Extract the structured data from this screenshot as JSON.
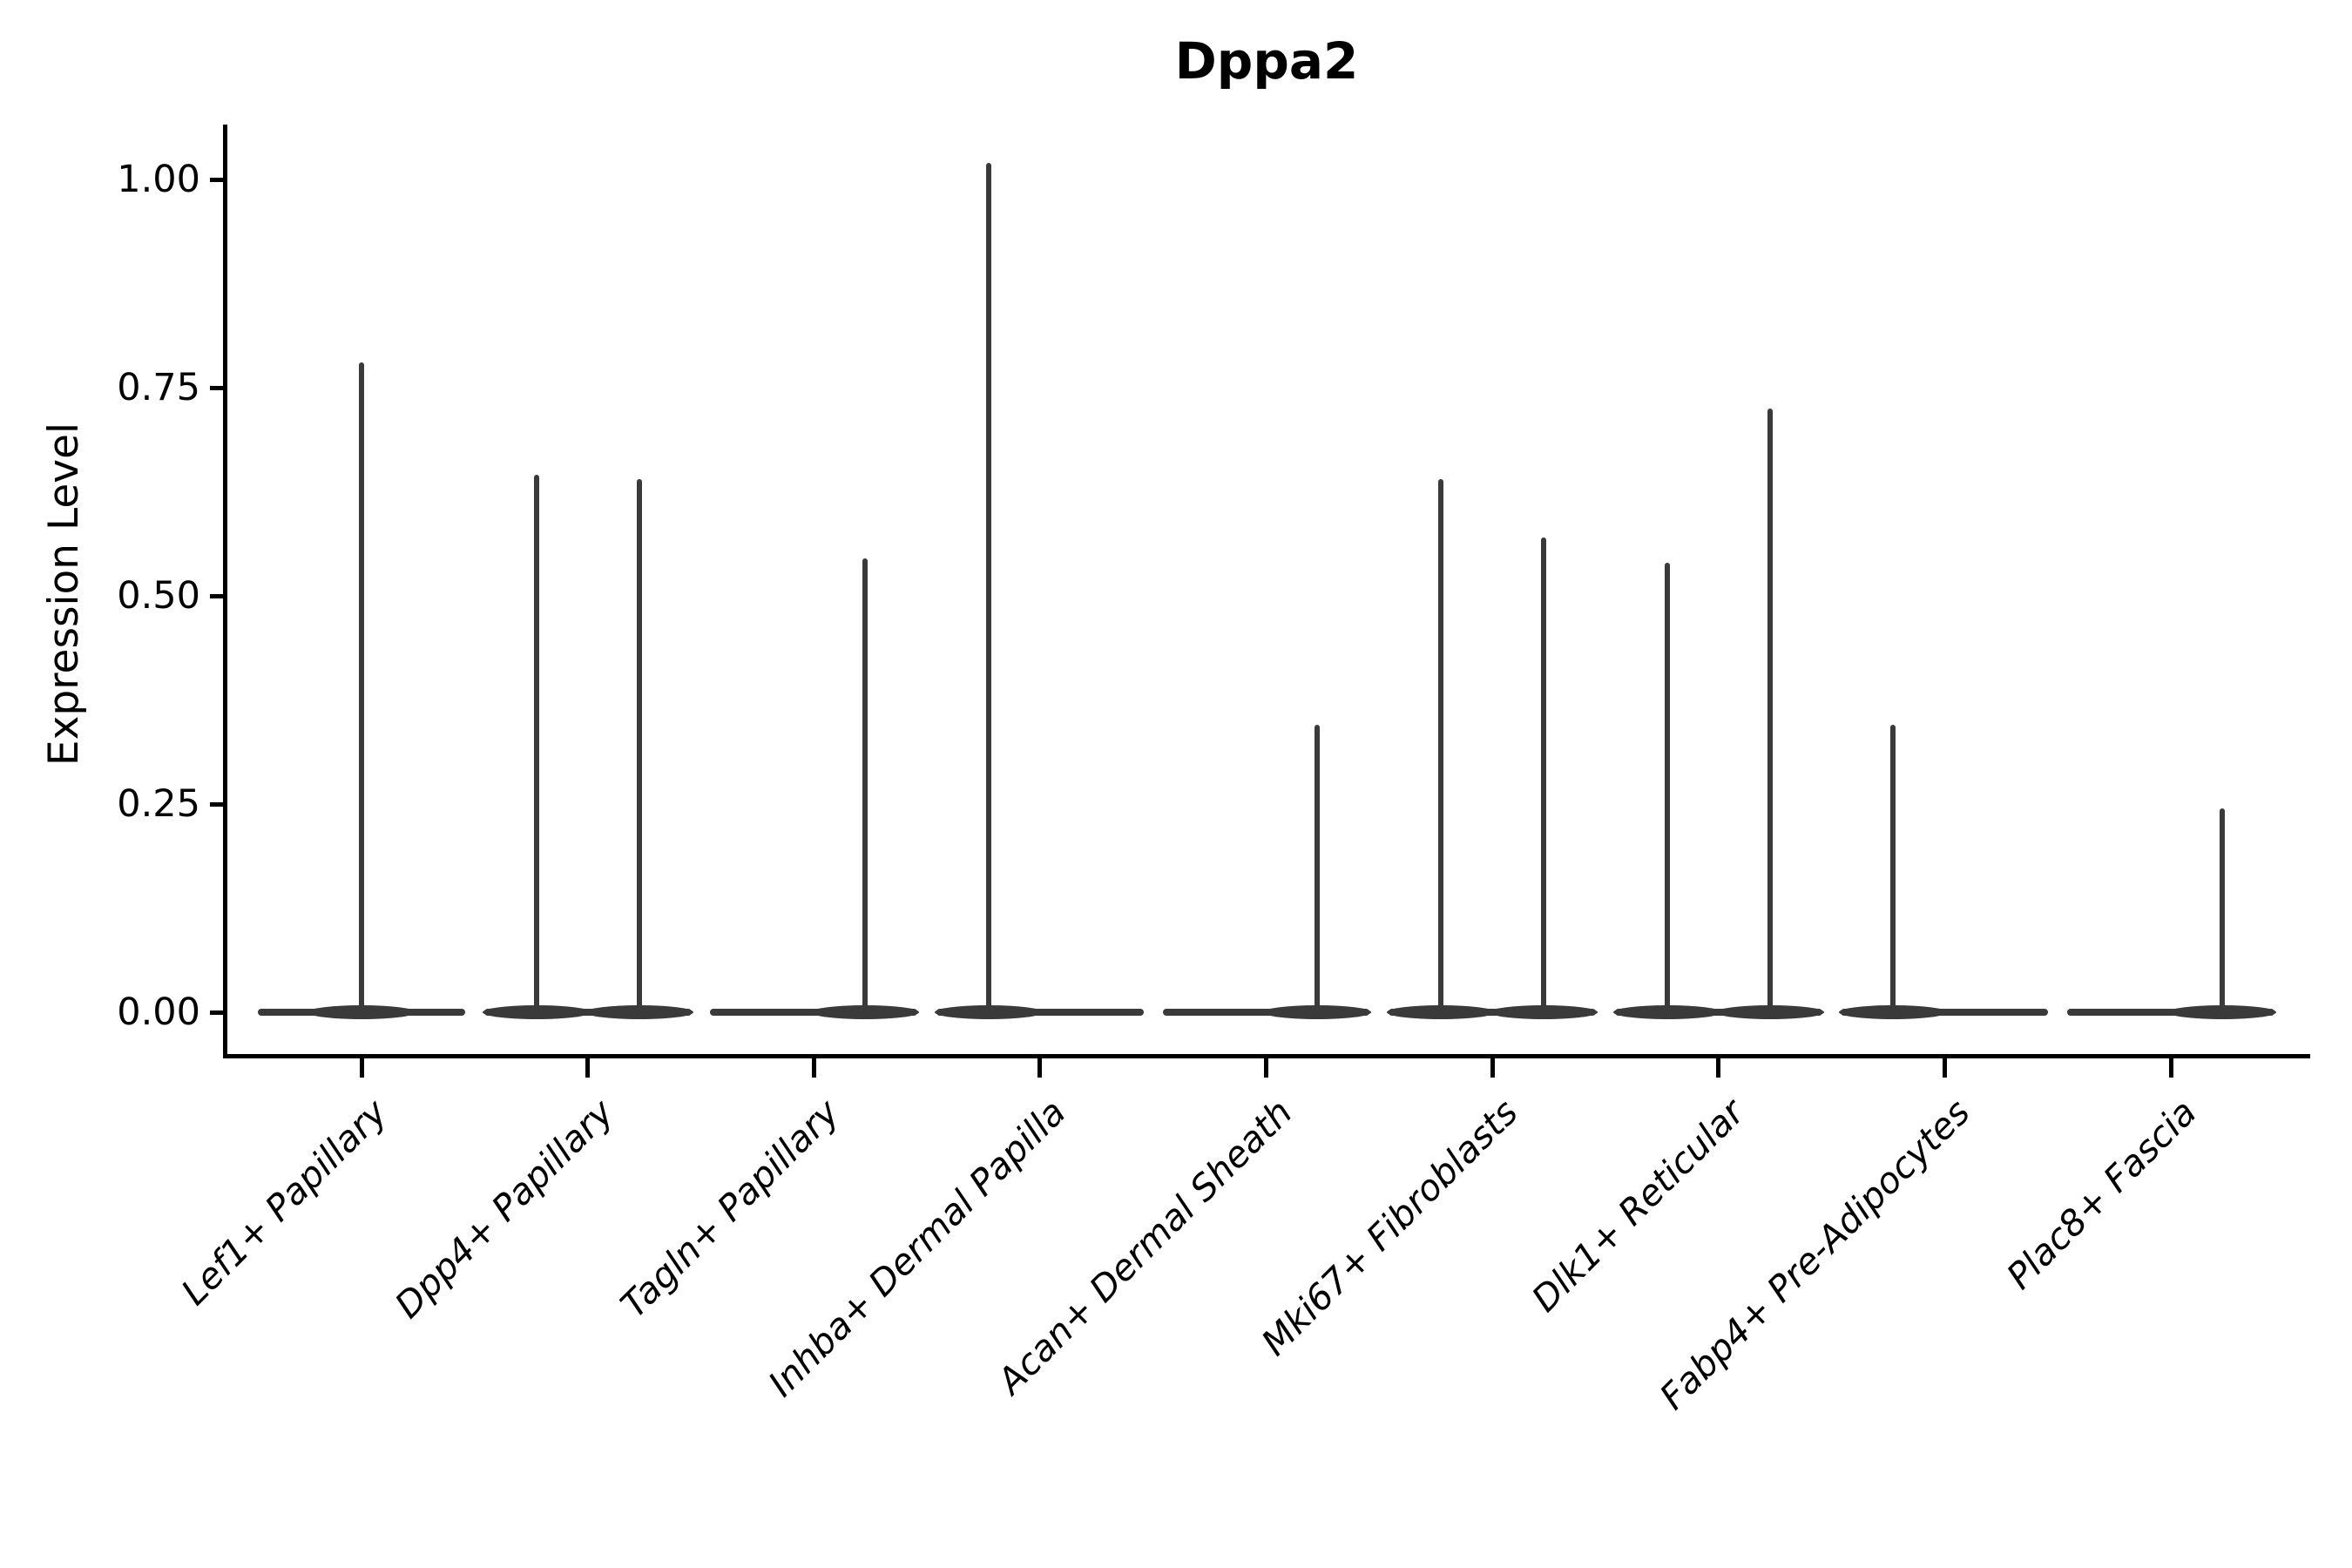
{
  "figure": {
    "title": "Dppa2"
  },
  "axes": {
    "ylabel": "Expression Level",
    "xlabel": "",
    "ytick_labels": [
      "0.00",
      "0.25",
      "0.50",
      "0.75",
      "1.00"
    ],
    "ytick_values": [
      0,
      0.25,
      0.5,
      0.75,
      1.0
    ]
  },
  "chart_data": {
    "type": "violin",
    "title": "Dppa2",
    "xlabel": "",
    "ylabel": "Expression Level",
    "ylim": [
      -0.05,
      1.07
    ],
    "yticks": [
      0,
      0.25,
      0.5,
      0.75,
      1.0
    ],
    "ytick_labels": [
      "0.00",
      "0.25",
      "0.50",
      "0.75",
      "1.00"
    ],
    "grid": false,
    "legend": "none",
    "axis_color": "#000000",
    "violin_color": "#3a3a3a",
    "x_label_rotation_deg": 45,
    "categories": [
      "Lef1+ Papillary",
      "Dpp4+ Papillary",
      "Tagln+ Papillary",
      "Inhba+ Dermal Papilla",
      "Acan+ Dermal Sheath",
      "Mki67+ Fibroblasts",
      "Dlk1+ Reticular",
      "Fabp4+ Pre-Adipocytes",
      "Plac8+ Fascia"
    ],
    "violins": [
      {
        "category": "Lef1+ Papillary",
        "baseline_value": 0,
        "spikes": [
          {
            "x_offset_frac": 0.0,
            "value": 0.78
          }
        ]
      },
      {
        "category": "Dpp4+ Papillary",
        "baseline_value": 0,
        "spikes": [
          {
            "x_offset_frac": -0.227,
            "value": 0.645
          },
          {
            "x_offset_frac": 0.227,
            "value": 0.64
          }
        ]
      },
      {
        "category": "Tagln+ Papillary",
        "baseline_value": 0,
        "spikes": [
          {
            "x_offset_frac": 0.227,
            "value": 0.545
          }
        ]
      },
      {
        "category": "Inhba+ Dermal Papilla",
        "baseline_value": 0,
        "spikes": [
          {
            "x_offset_frac": -0.227,
            "value": 1.02
          }
        ]
      },
      {
        "category": "Acan+ Dermal Sheath",
        "baseline_value": 0,
        "spikes": [
          {
            "x_offset_frac": 0.227,
            "value": 0.345
          }
        ]
      },
      {
        "category": "Mki67+ Fibroblasts",
        "baseline_value": 0,
        "spikes": [
          {
            "x_offset_frac": -0.227,
            "value": 0.64
          },
          {
            "x_offset_frac": 0.227,
            "value": 0.57
          }
        ]
      },
      {
        "category": "Dlk1+ Reticular",
        "baseline_value": 0,
        "spikes": [
          {
            "x_offset_frac": -0.227,
            "value": 0.54
          },
          {
            "x_offset_frac": 0.227,
            "value": 0.725
          }
        ]
      },
      {
        "category": "Fabp4+ Pre-Adipocytes",
        "baseline_value": 0,
        "spikes": [
          {
            "x_offset_frac": -0.227,
            "value": 0.345
          }
        ]
      },
      {
        "category": "Plac8+ Fascia",
        "baseline_value": 0,
        "spikes": [
          {
            "x_offset_frac": 0.227,
            "value": 0.245
          }
        ]
      }
    ]
  }
}
